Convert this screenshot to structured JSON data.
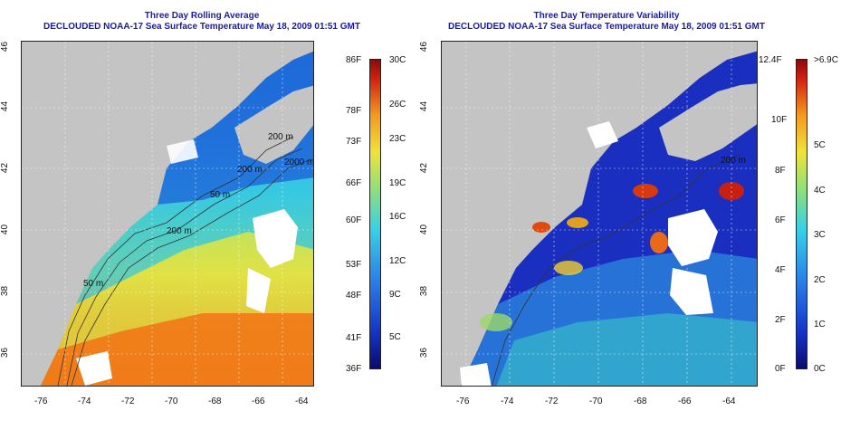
{
  "left_panel": {
    "title_line1": "Three Day Rolling Average",
    "title_line2": "DECLOUDED NOAA-17 Sea Surface Temperature May 18, 2009 01:51 GMT",
    "x_ticks": [
      "-76",
      "-74",
      "-72",
      "-70",
      "-68",
      "-66",
      "-64"
    ],
    "y_ticks": [
      "46",
      "44",
      "42",
      "40",
      "38",
      "36"
    ],
    "contour_labels": [
      "200 m",
      "2000 m",
      "200 m",
      "50 m",
      "200 m",
      "50 m"
    ],
    "colorbar_f": [
      "86F",
      "78F",
      "73F",
      "66F",
      "60F",
      "53F",
      "48F",
      "41F",
      "36F"
    ],
    "colorbar_c": [
      "30C",
      "26C",
      "23C",
      "19C",
      "16C",
      "12C",
      "9C",
      "5C"
    ]
  },
  "right_panel": {
    "title_line1": "Three Day Temperature Variability",
    "title_line2": "DECLOUDED NOAA-17 Sea Surface Temperature May 18, 2009 01:51 GMT",
    "x_ticks": [
      "-76",
      "-74",
      "-72",
      "-70",
      "-68",
      "-66",
      "-64"
    ],
    "y_ticks": [
      "46",
      "44",
      "42",
      "40",
      "38",
      "36"
    ],
    "contour_labels": [
      "200 m"
    ],
    "colorbar_f": [
      "12.4F",
      "10F",
      "8F",
      "6F",
      "4F",
      "2F",
      "0F"
    ],
    "colorbar_c": [
      ">6.9C",
      "5C",
      "4C",
      "3C",
      "2C",
      "1C",
      "0C"
    ]
  },
  "colors": {
    "land": "#c4c4c4",
    "title": "#1a1aa8",
    "cloud_mask": "#ffffff"
  }
}
